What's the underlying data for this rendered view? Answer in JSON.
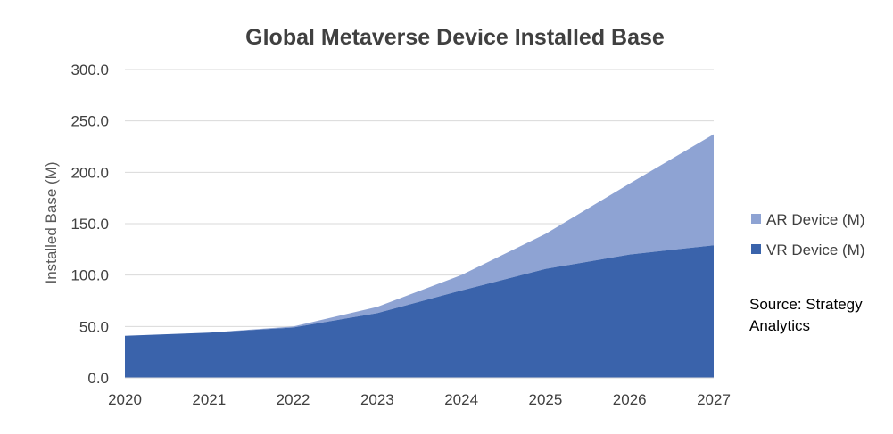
{
  "chart_data": {
    "type": "area",
    "stacked": true,
    "title": "Global Metaverse Device Installed Base",
    "xlabel": "",
    "ylabel": "Installed Base (M)",
    "categories": [
      "2020",
      "2021",
      "2022",
      "2023",
      "2024",
      "2025",
      "2026",
      "2027"
    ],
    "ylim": [
      0,
      300
    ],
    "yticks": [
      "0.0",
      "50.0",
      "100.0",
      "150.0",
      "200.0",
      "250.0",
      "300.0"
    ],
    "ytick_values": [
      0,
      50,
      100,
      150,
      200,
      250,
      300
    ],
    "grid": true,
    "legend_position": "right",
    "series": [
      {
        "name": "VR Device (M)",
        "color": "#3a63ab",
        "values": [
          41,
          44,
          49,
          63,
          85,
          106,
          120,
          129
        ]
      },
      {
        "name": "AR Device (M)",
        "color": "#8ea3d3",
        "values": [
          0,
          0,
          1,
          6,
          15,
          34,
          69,
          108
        ]
      }
    ],
    "legend": [
      "AR Device (M)",
      "VR Device (M)"
    ],
    "annotation": "Source: Strategy Analytics"
  }
}
